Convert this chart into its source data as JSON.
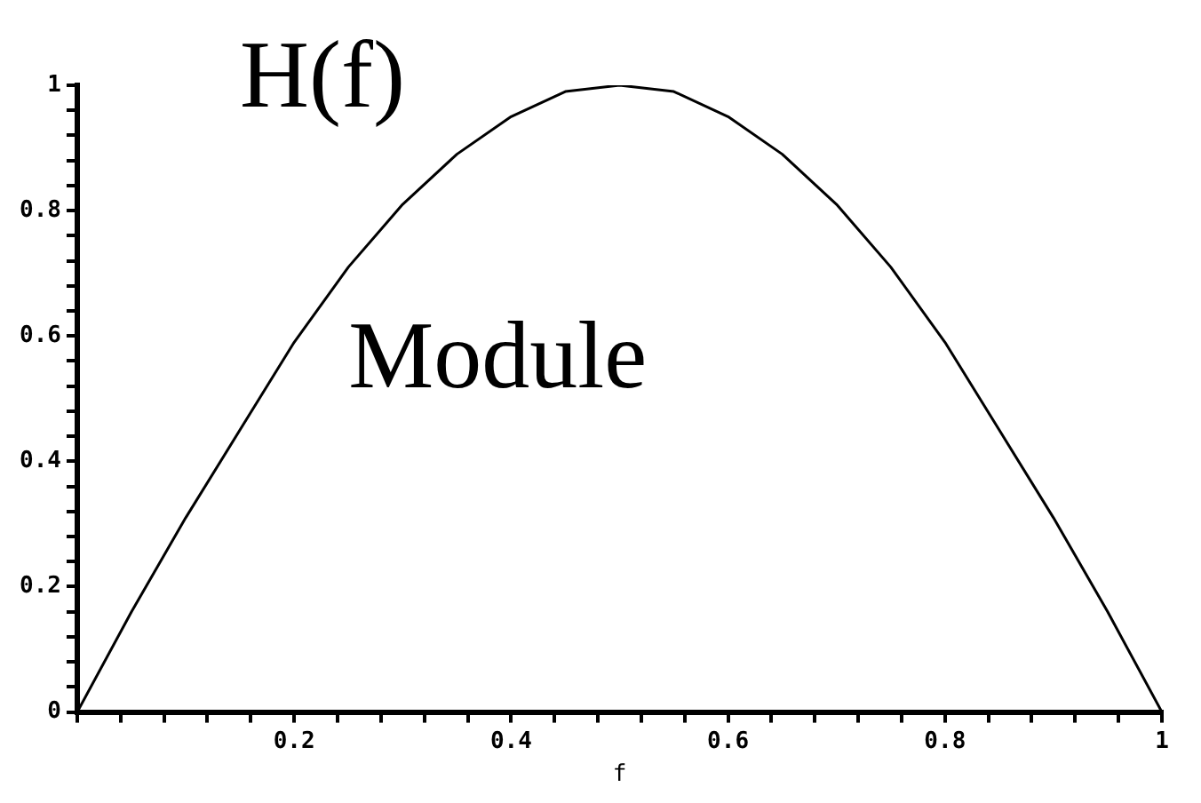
{
  "chart_data": {
    "type": "line",
    "xlabel": "f",
    "annotations": [
      "H(f)",
      "Module"
    ],
    "x": [
      0,
      0.05,
      0.1,
      0.15,
      0.2,
      0.25,
      0.3,
      0.35,
      0.4,
      0.45,
      0.5,
      0.55,
      0.6,
      0.65,
      0.7,
      0.75,
      0.8,
      0.85,
      0.9,
      0.95,
      1
    ],
    "series": [
      {
        "color": "#000000",
        "values": [
          0,
          0.16,
          0.31,
          0.45,
          0.59,
          0.71,
          0.81,
          0.89,
          0.95,
          0.99,
          1,
          0.99,
          0.95,
          0.89,
          0.81,
          0.71,
          0.59,
          0.45,
          0.31,
          0.16,
          0
        ]
      }
    ],
    "xlim": [
      0,
      1
    ],
    "ylim": [
      0,
      1
    ],
    "xticks": [
      {
        "value": 0,
        "label": null
      },
      {
        "value": 0.04,
        "label": null
      },
      {
        "value": 0.08,
        "label": null
      },
      {
        "value": 0.12,
        "label": null
      },
      {
        "value": 0.16,
        "label": null
      },
      0.2,
      {
        "value": 0.24,
        "label": null
      },
      {
        "value": 0.28,
        "label": null
      },
      {
        "value": 0.32,
        "label": null
      },
      {
        "value": 0.36,
        "label": null
      },
      0.4,
      {
        "value": 0.44,
        "label": null
      },
      {
        "value": 0.48,
        "label": null
      },
      {
        "value": 0.52,
        "label": null
      },
      {
        "value": 0.56,
        "label": null
      },
      0.6,
      {
        "value": 0.64,
        "label": null
      },
      {
        "value": 0.68,
        "label": null
      },
      {
        "value": 0.72,
        "label": null
      },
      {
        "value": 0.76,
        "label": null
      },
      0.8,
      {
        "value": 0.84,
        "label": null
      },
      {
        "value": 0.88,
        "label": null
      },
      {
        "value": 0.92,
        "label": null
      },
      {
        "value": 0.96,
        "label": null
      },
      1
    ],
    "yticks": [
      0,
      {
        "value": 0.04,
        "label": null
      },
      {
        "value": 0.08,
        "label": null
      },
      {
        "value": 0.12,
        "label": null
      },
      {
        "value": 0.16,
        "label": null
      },
      0.2,
      {
        "value": 0.24,
        "label": null
      },
      {
        "value": 0.28,
        "label": null
      },
      {
        "value": 0.32,
        "label": null
      },
      {
        "value": 0.36,
        "label": null
      },
      0.4,
      {
        "value": 0.44,
        "label": null
      },
      {
        "value": 0.48,
        "label": null
      },
      {
        "value": 0.52,
        "label": null
      },
      {
        "value": 0.56,
        "label": null
      },
      0.6,
      {
        "value": 0.64,
        "label": null
      },
      {
        "value": 0.68,
        "label": null
      },
      {
        "value": 0.72,
        "label": null
      },
      {
        "value": 0.76,
        "label": null
      },
      0.8,
      {
        "value": 0.84,
        "label": null
      },
      {
        "value": 0.88,
        "label": null
      },
      {
        "value": 0.92,
        "label": null
      },
      {
        "value": 0.96,
        "label": null
      },
      1
    ],
    "grid": false,
    "legend": false,
    "marker": "none",
    "line_style": "solid"
  }
}
